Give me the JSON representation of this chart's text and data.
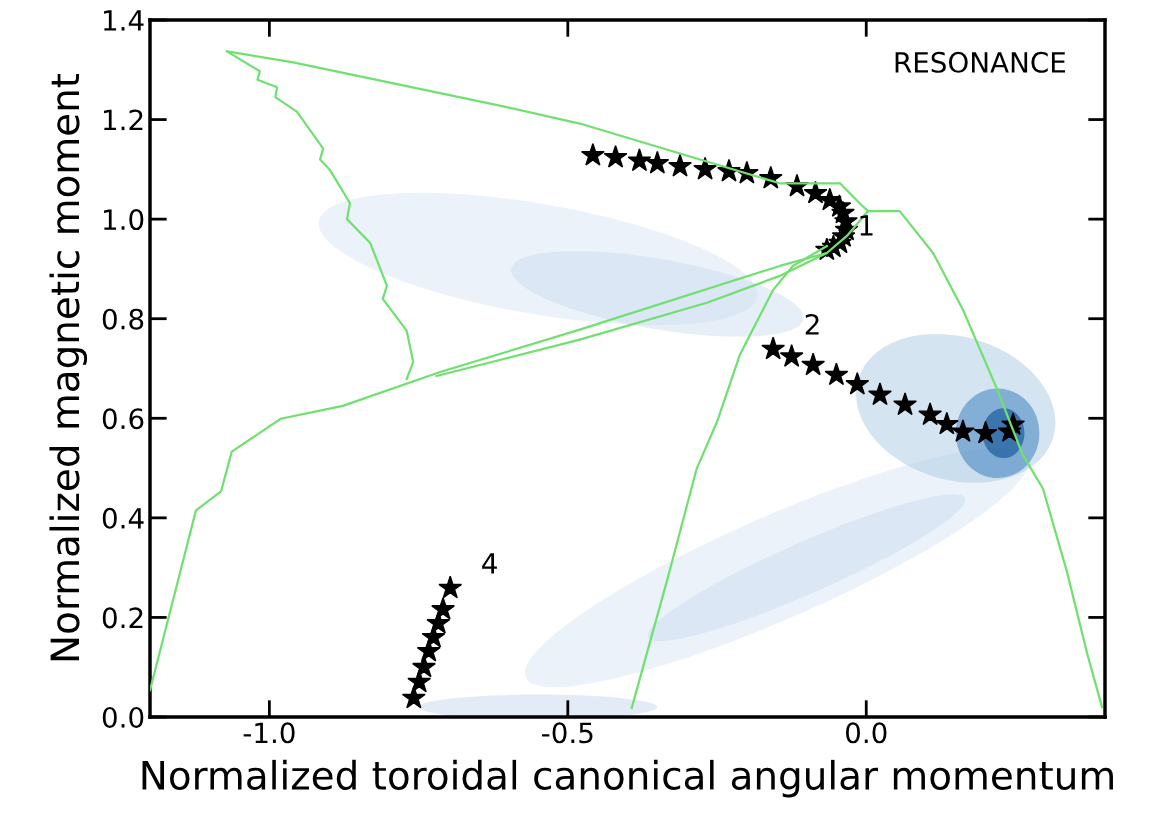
{
  "chart_data": {
    "type": "scatter",
    "xlabel": "Normalized toroidal canonical angular momentum",
    "ylabel": "Normalized magnetic moment",
    "xlim": [
      -1.2,
      0.4
    ],
    "ylim": [
      0.0,
      1.4
    ],
    "xticks": [
      {
        "value": -1.0,
        "label": "-1.0"
      },
      {
        "value": -0.5,
        "label": "-0.5"
      },
      {
        "value": 0.0,
        "label": "0.0"
      }
    ],
    "yticks": [
      {
        "value": 0.0,
        "label": "0.0"
      },
      {
        "value": 0.2,
        "label": "0.2"
      },
      {
        "value": 0.4,
        "label": "0.4"
      },
      {
        "value": 0.6,
        "label": "0.6"
      },
      {
        "value": 0.8,
        "label": "0.8"
      },
      {
        "value": 1.0,
        "label": "1.0"
      },
      {
        "value": 1.2,
        "label": "1.2"
      },
      {
        "value": 1.4,
        "label": "1.4"
      }
    ],
    "grid": false,
    "legend": false,
    "series": [
      {
        "type": "line",
        "color": "#70e070",
        "x": [
          -1.2,
          -1.123,
          -1.081,
          -1.063,
          -0.981,
          -0.877,
          -0.714,
          -0.48,
          -0.145,
          -0.066,
          -0.031,
          0.003
        ],
        "values": [
          0.054,
          0.415,
          0.453,
          0.533,
          0.599,
          0.625,
          0.693,
          0.778,
          0.906,
          0.932,
          0.968,
          1.016
        ]
      },
      {
        "type": "line",
        "color": "#70e070",
        "x": [
          -0.72,
          -0.48,
          -0.267,
          -0.145,
          -0.066
        ],
        "values": [
          0.685,
          0.758,
          0.832,
          0.886,
          0.932
        ]
      },
      {
        "type": "line",
        "color": "#70e070",
        "x": [
          0.003,
          0.056,
          0.112,
          0.162,
          0.219,
          0.262,
          0.296,
          0.336,
          0.37,
          0.395
        ],
        "values": [
          1.016,
          1.016,
          0.932,
          0.818,
          0.659,
          0.527,
          0.459,
          0.293,
          0.128,
          0.02
        ]
      },
      {
        "type": "line",
        "color": "#70e070",
        "x": [
          -1.071,
          -0.96,
          -0.614,
          -0.48,
          -0.145,
          -0.044,
          -0.011,
          0.003
        ],
        "values": [
          1.337,
          1.315,
          1.228,
          1.192,
          1.072,
          1.072,
          1.032,
          1.016
        ]
      },
      {
        "type": "line",
        "color": "#70e070",
        "x": [
          -1.071,
          -1.016,
          -1.02,
          -0.987,
          -0.99,
          -0.954,
          -0.91,
          -0.915,
          -0.898,
          -0.865,
          -0.87,
          -0.831,
          -0.803,
          -0.81,
          -0.77,
          -0.759,
          -0.77
        ],
        "values": [
          1.337,
          1.297,
          1.28,
          1.265,
          1.245,
          1.216,
          1.142,
          1.12,
          1.098,
          1.032,
          1.0,
          0.952,
          0.866,
          0.84,
          0.776,
          0.713,
          0.679
        ]
      },
      {
        "type": "line",
        "color": "#70e070",
        "x": [
          -0.393,
          -0.334,
          -0.284,
          -0.25,
          -0.212,
          -0.156,
          -0.123,
          -0.066
        ],
        "values": [
          0.018,
          0.273,
          0.499,
          0.593,
          0.727,
          0.858,
          0.906,
          0.946
        ]
      },
      {
        "name": "1",
        "color": "#000000",
        "marker": "star",
        "x": [
          -0.458,
          -0.42,
          -0.38,
          -0.35,
          -0.312,
          -0.27,
          -0.23,
          -0.2,
          -0.16,
          -0.116,
          -0.085,
          -0.061,
          -0.045,
          -0.039,
          -0.034,
          -0.033,
          -0.038,
          -0.044,
          -0.055,
          -0.066
        ],
        "values": [
          1.128,
          1.124,
          1.117,
          1.112,
          1.106,
          1.1,
          1.096,
          1.092,
          1.082,
          1.066,
          1.052,
          1.038,
          1.025,
          1.012,
          0.995,
          0.978,
          0.965,
          0.952,
          0.944,
          0.938
        ]
      },
      {
        "name": "2",
        "color": "#000000",
        "marker": "star",
        "x": [
          0.246,
          0.24,
          0.2,
          0.162,
          0.135,
          0.107,
          0.065,
          0.023,
          -0.015,
          -0.05,
          -0.089,
          -0.125,
          -0.156
        ],
        "values": [
          0.587,
          0.573,
          0.57,
          0.573,
          0.588,
          0.607,
          0.627,
          0.647,
          0.668,
          0.687,
          0.707,
          0.724,
          0.739
        ]
      },
      {
        "name": "4",
        "color": "#000000",
        "marker": "star",
        "x": [
          -0.758,
          -0.749,
          -0.741,
          -0.733,
          -0.725,
          -0.717,
          -0.709,
          -0.697
        ],
        "values": [
          0.038,
          0.07,
          0.1,
          0.132,
          0.16,
          0.188,
          0.216,
          0.259
        ]
      }
    ],
    "annotations": [
      "RESONANCE"
    ]
  }
}
